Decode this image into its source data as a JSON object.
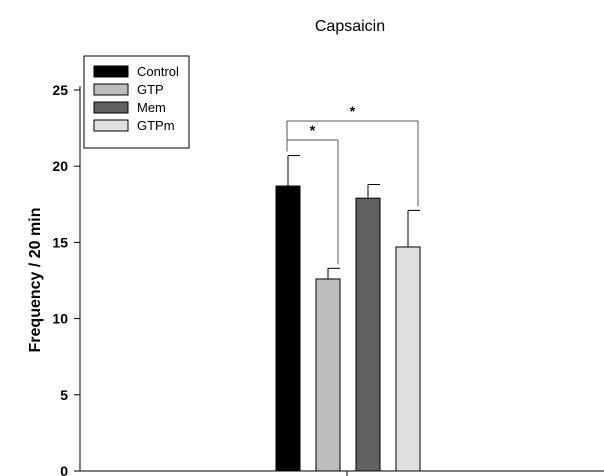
{
  "chart_data": {
    "type": "bar",
    "title": "Capsaicin",
    "ylabel": "Frequency / 20 min",
    "xlabel": "",
    "ylim": [
      0,
      25
    ],
    "yticks": [
      0,
      5,
      10,
      15,
      20,
      25
    ],
    "grid": false,
    "legend_position": "top-left",
    "series": [
      {
        "name": "Control",
        "value": 18.7,
        "error": 2.0,
        "color": "#000000"
      },
      {
        "name": "GTP",
        "value": 12.6,
        "error": 0.7,
        "color": "#bdbdbd"
      },
      {
        "name": "Mem",
        "value": 17.9,
        "error": 0.9,
        "color": "#616161"
      },
      {
        "name": "GTPm",
        "value": 14.7,
        "error": 2.4,
        "color": "#e0e0e0"
      }
    ],
    "significance": [
      {
        "from": "Control",
        "to": "GTP",
        "label": "*"
      },
      {
        "from": "Control",
        "to": "GTPm",
        "label": "*"
      }
    ]
  }
}
